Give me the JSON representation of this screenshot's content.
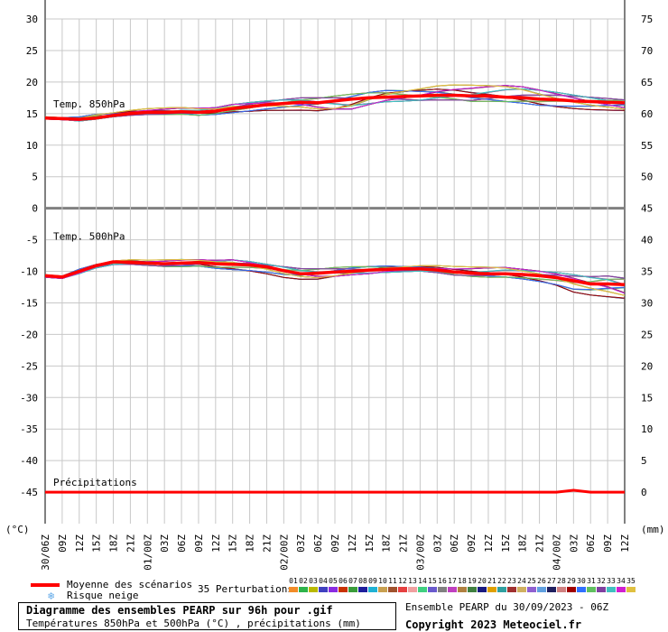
{
  "chart_data": {
    "type": "line",
    "title": "Diagramme des ensembles PEARP sur 96h pour .gif",
    "subtitle": "Températures 850hPa et 500hPa (°C) , précipitations (mm)",
    "left_unit": "(°C)",
    "right_unit": "(mm)",
    "left_ticks": [
      30,
      25,
      20,
      15,
      10,
      5,
      0,
      -5,
      -10,
      -15,
      -20,
      -25,
      -30,
      -35,
      -40,
      -45
    ],
    "right_ticks": [
      75,
      70,
      65,
      60,
      55,
      50,
      45,
      40,
      35,
      30,
      25,
      20,
      15,
      10,
      5,
      0
    ],
    "ylim": [
      -50,
      30
    ],
    "x_labels": [
      "30/06Z",
      "09Z",
      "12Z",
      "15Z",
      "18Z",
      "21Z",
      "01/00Z",
      "03Z",
      "06Z",
      "09Z",
      "12Z",
      "15Z",
      "18Z",
      "21Z",
      "02/00Z",
      "03Z",
      "06Z",
      "09Z",
      "12Z",
      "15Z",
      "18Z",
      "21Z",
      "03/00Z",
      "03Z",
      "06Z",
      "09Z",
      "12Z",
      "15Z",
      "18Z",
      "21Z",
      "04/00Z",
      "03Z",
      "06Z",
      "09Z",
      "12Z"
    ],
    "panels": [
      {
        "label": "Temp. 850hPa",
        "label_y": 16
      },
      {
        "label": "Temp. 500hPa",
        "label_y": -5
      },
      {
        "label": "Précipitations",
        "label_y": -44
      }
    ],
    "series": [
      {
        "name": "Moyenne des scénarios",
        "role": "t850_mean",
        "color": "#ff0000",
        "values": [
          14.3,
          14.2,
          14.1,
          14.3,
          14.7,
          15.0,
          15.2,
          15.2,
          15.3,
          15.2,
          15.4,
          15.8,
          16.1,
          16.4,
          16.6,
          16.8,
          16.7,
          17.0,
          17.3,
          17.5,
          17.6,
          17.7,
          17.8,
          17.9,
          17.9,
          17.8,
          17.8,
          17.6,
          17.5,
          17.3,
          17.2,
          17.0,
          16.9,
          16.8,
          16.7
        ]
      },
      {
        "name": "Moyenne des scénarios",
        "role": "t500_mean",
        "color": "#ff0000",
        "values": [
          -10.7,
          -10.9,
          -10.0,
          -9.1,
          -8.5,
          -8.6,
          -8.7,
          -8.8,
          -8.7,
          -8.6,
          -8.8,
          -8.9,
          -9.0,
          -9.3,
          -9.9,
          -10.4,
          -10.3,
          -10.1,
          -10.0,
          -9.8,
          -9.7,
          -9.6,
          -9.6,
          -9.8,
          -10.1,
          -10.3,
          -10.4,
          -10.4,
          -10.5,
          -10.7,
          -11.0,
          -11.5,
          -12.0,
          -12.0,
          -12.1
        ]
      },
      {
        "name": "Précipitations",
        "role": "precip_mean",
        "color": "#ff0000",
        "values": [
          0,
          0,
          0,
          0,
          0,
          0,
          0,
          0,
          0,
          0,
          0,
          0,
          0,
          0,
          0,
          0,
          0,
          0,
          0,
          0,
          0,
          0,
          0,
          0,
          0,
          0,
          0,
          0,
          0,
          0,
          0,
          0.1,
          0,
          0,
          0
        ]
      }
    ],
    "perturbations": {
      "count_label": "35 Perturbations",
      "ids": [
        "01",
        "02",
        "03",
        "04",
        "05",
        "06",
        "07",
        "08",
        "09",
        "10",
        "11",
        "12",
        "13",
        "14",
        "15",
        "16",
        "17",
        "18",
        "19",
        "20",
        "21",
        "22",
        "23",
        "24",
        "25",
        "26",
        "27",
        "28",
        "29",
        "30",
        "31",
        "32",
        "33",
        "34",
        "35"
      ],
      "colors": [
        "#f28c28",
        "#2db34a",
        "#b9b900",
        "#4040c0",
        "#8a2be2",
        "#c83200",
        "#3a9c3a",
        "#1e1e9c",
        "#20b2d4",
        "#c8a050",
        "#a0522d",
        "#e64040",
        "#f0a0a0",
        "#40d080",
        "#6a5acd",
        "#808080",
        "#c040c0",
        "#b08040",
        "#408040",
        "#1a1a80",
        "#e0a000",
        "#30a0a0",
        "#a03030",
        "#d0b060",
        "#9060d0",
        "#60a0e0",
        "#202060",
        "#d08080",
        "#a00000",
        "#3070ff",
        "#60c060",
        "#8040a0",
        "#40c0c0",
        "#d020d0",
        "#e0c040"
      ],
      "t850_spread": [
        [
          14.0,
          14.6
        ],
        [
          13.9,
          14.5
        ],
        [
          13.6,
          14.7
        ],
        [
          13.9,
          15.2
        ],
        [
          14.3,
          15.3
        ],
        [
          14.6,
          15.6
        ],
        [
          14.7,
          15.8
        ],
        [
          14.7,
          15.9
        ],
        [
          14.8,
          16.0
        ],
        [
          14.6,
          15.9
        ],
        [
          14.8,
          16.0
        ],
        [
          15.1,
          16.6
        ],
        [
          15.3,
          16.9
        ],
        [
          15.5,
          17.2
        ],
        [
          15.5,
          17.5
        ],
        [
          15.4,
          17.8
        ],
        [
          15.0,
          18.0
        ],
        [
          14.8,
          18.4
        ],
        [
          14.9,
          18.8
        ],
        [
          15.7,
          19.1
        ],
        [
          16.3,
          19.3
        ],
        [
          16.5,
          19.3
        ],
        [
          16.6,
          19.4
        ],
        [
          16.8,
          19.6
        ],
        [
          16.8,
          19.6
        ],
        [
          16.6,
          19.5
        ],
        [
          16.7,
          19.5
        ],
        [
          16.6,
          19.6
        ],
        [
          16.5,
          19.4
        ],
        [
          16.2,
          19.0
        ],
        [
          16.0,
          18.6
        ],
        [
          15.8,
          18.2
        ],
        [
          15.6,
          17.9
        ],
        [
          15.4,
          17.7
        ],
        [
          15.1,
          17.6
        ]
      ],
      "t500_spread": [
        [
          -11.1,
          -10.4
        ],
        [
          -11.3,
          -10.6
        ],
        [
          -10.6,
          -9.4
        ],
        [
          -9.6,
          -8.7
        ],
        [
          -9.1,
          -8.2
        ],
        [
          -9.0,
          -8.1
        ],
        [
          -9.2,
          -8.2
        ],
        [
          -9.4,
          -8.2
        ],
        [
          -9.4,
          -8.1
        ],
        [
          -9.3,
          -8.1
        ],
        [
          -9.6,
          -8.2
        ],
        [
          -9.8,
          -8.0
        ],
        [
          -10.0,
          -8.3
        ],
        [
          -10.4,
          -8.7
        ],
        [
          -11.0,
          -9.0
        ],
        [
          -11.4,
          -9.3
        ],
        [
          -11.6,
          -9.2
        ],
        [
          -11.4,
          -9.0
        ],
        [
          -11.0,
          -8.9
        ],
        [
          -10.8,
          -8.8
        ],
        [
          -10.5,
          -8.8
        ],
        [
          -10.3,
          -8.9
        ],
        [
          -10.2,
          -8.9
        ],
        [
          -10.4,
          -9.0
        ],
        [
          -10.8,
          -9.2
        ],
        [
          -11.0,
          -9.3
        ],
        [
          -11.1,
          -9.3
        ],
        [
          -11.1,
          -9.3
        ],
        [
          -11.3,
          -9.6
        ],
        [
          -11.7,
          -9.8
        ],
        [
          -12.3,
          -10.0
        ],
        [
          -13.3,
          -10.2
        ],
        [
          -13.8,
          -10.4
        ],
        [
          -14.3,
          -10.2
        ],
        [
          -15.0,
          -10.3
        ]
      ]
    }
  },
  "legend": {
    "mean_label": "Moyenne des scénarios",
    "snow_label": "Risque neige",
    "snow_icon": "snowflake-icon"
  },
  "footer": {
    "title": "Diagramme des ensembles PEARP sur 96h pour .gif",
    "subtitle": "Températures 850hPa et 500hPa (°C) , précipitations (mm)",
    "ensemble_info": "Ensemble PEARP du 30/09/2023 - 06Z",
    "copyright": "Copyright 2023 Meteociel.fr"
  }
}
